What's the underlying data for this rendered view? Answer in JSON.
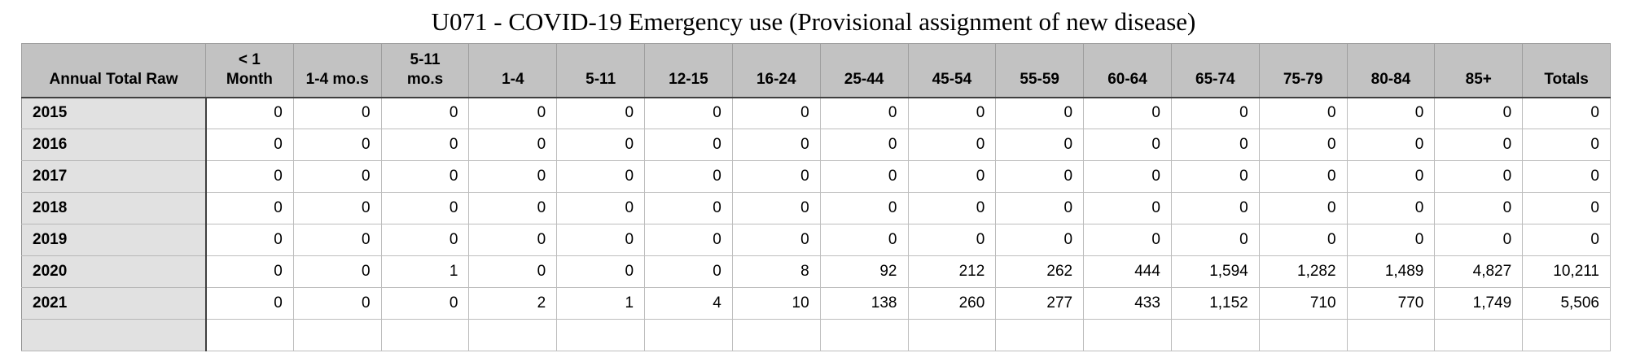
{
  "title": "U071 - COVID-19 Emergency use (Provisional assignment of new disease)",
  "colors": {
    "header_bg": "#c2c2c2",
    "row_header_bg": "#e1e1e1",
    "grid_light": "#bdbdbd",
    "grid_dark": "#3f3f3f",
    "page_bg": "#ffffff",
    "text": "#000000"
  },
  "chart_data": {
    "type": "table",
    "title": "U071 - COVID-19 Emergency use (Provisional assignment of new disease)",
    "columns": [
      "Annual Total Raw",
      "< 1\nMonth",
      "1-4 mo.s",
      "5-11\nmo.s",
      "1-4",
      "5-11",
      "12-15",
      "16-24",
      "25-44",
      "45-54",
      "55-59",
      "60-64",
      "65-74",
      "75-79",
      "80-84",
      "85+",
      "Totals"
    ],
    "rows": [
      {
        "year": "2015",
        "values": [
          "0",
          "0",
          "0",
          "0",
          "0",
          "0",
          "0",
          "0",
          "0",
          "0",
          "0",
          "0",
          "0",
          "0",
          "0",
          "0"
        ]
      },
      {
        "year": "2016",
        "values": [
          "0",
          "0",
          "0",
          "0",
          "0",
          "0",
          "0",
          "0",
          "0",
          "0",
          "0",
          "0",
          "0",
          "0",
          "0",
          "0"
        ]
      },
      {
        "year": "2017",
        "values": [
          "0",
          "0",
          "0",
          "0",
          "0",
          "0",
          "0",
          "0",
          "0",
          "0",
          "0",
          "0",
          "0",
          "0",
          "0",
          "0"
        ]
      },
      {
        "year": "2018",
        "values": [
          "0",
          "0",
          "0",
          "0",
          "0",
          "0",
          "0",
          "0",
          "0",
          "0",
          "0",
          "0",
          "0",
          "0",
          "0",
          "0"
        ]
      },
      {
        "year": "2019",
        "values": [
          "0",
          "0",
          "0",
          "0",
          "0",
          "0",
          "0",
          "0",
          "0",
          "0",
          "0",
          "0",
          "0",
          "0",
          "0",
          "0"
        ]
      },
      {
        "year": "2020",
        "values": [
          "0",
          "0",
          "1",
          "0",
          "0",
          "0",
          "8",
          "92",
          "212",
          "262",
          "444",
          "1,594",
          "1,282",
          "1,489",
          "4,827",
          "10,211"
        ]
      },
      {
        "year": "2021",
        "values": [
          "0",
          "0",
          "0",
          "2",
          "1",
          "4",
          "10",
          "138",
          "260",
          "277",
          "433",
          "1,152",
          "710",
          "770",
          "1,749",
          "5,506"
        ]
      }
    ],
    "trailing_empty_row": true
  }
}
